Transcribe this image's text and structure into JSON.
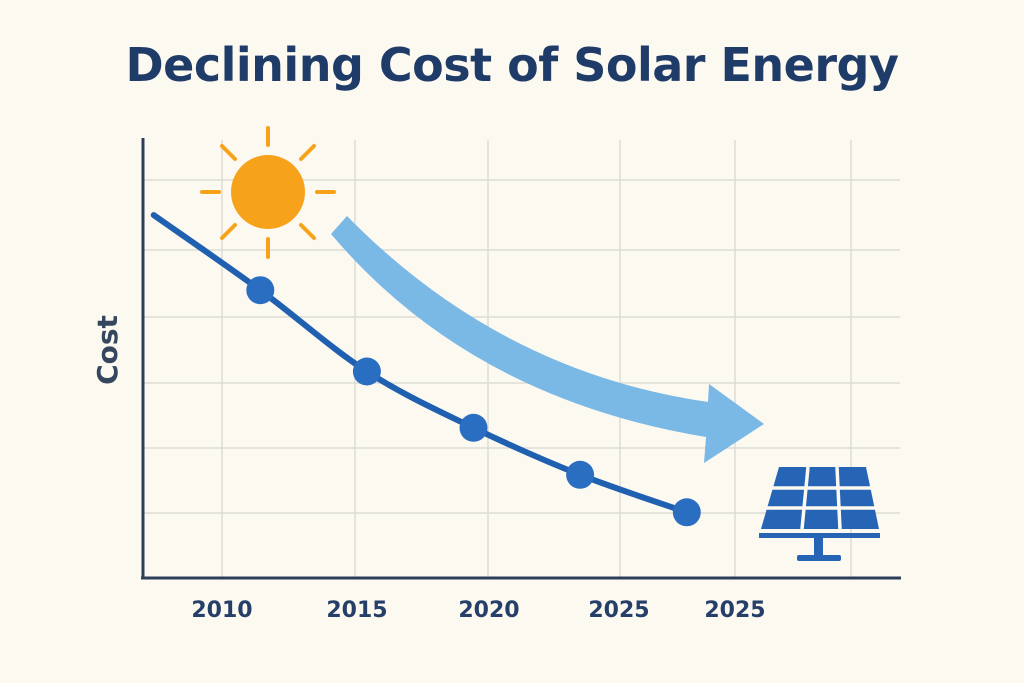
{
  "chart_data": {
    "type": "line",
    "title": "Declining Cost of Solar Energy",
    "xlabel": "",
    "ylabel": "Cost",
    "tick_labels": [
      "2010",
      "2015",
      "2020",
      "2025",
      "2025"
    ],
    "series": [
      {
        "name": "Cost",
        "points": [
          {
            "x": 0.0,
            "y": 5.8
          },
          {
            "x": 1.0,
            "y": 4.6
          },
          {
            "x": 2.0,
            "y": 3.3
          },
          {
            "x": 3.0,
            "y": 2.4
          },
          {
            "x": 4.0,
            "y": 1.65
          },
          {
            "x": 5.0,
            "y": 1.05
          }
        ],
        "marker_indices": [
          1,
          2,
          3,
          4,
          5
        ]
      }
    ],
    "xlim": [
      -0.1,
      7.0
    ],
    "ylim": [
      0,
      7
    ],
    "grid": true,
    "legend": "none",
    "colors": {
      "line": "#2060b0",
      "marker": "#2a6ec1",
      "grid": "#dcdcd6",
      "axis": "#2c3e5a",
      "arrow": "#7ab8e6",
      "sun": "#f7a21b",
      "panel": "#2664b5"
    },
    "icons": [
      "sun-icon",
      "trend-arrow-icon",
      "solar-panel-icon"
    ]
  }
}
